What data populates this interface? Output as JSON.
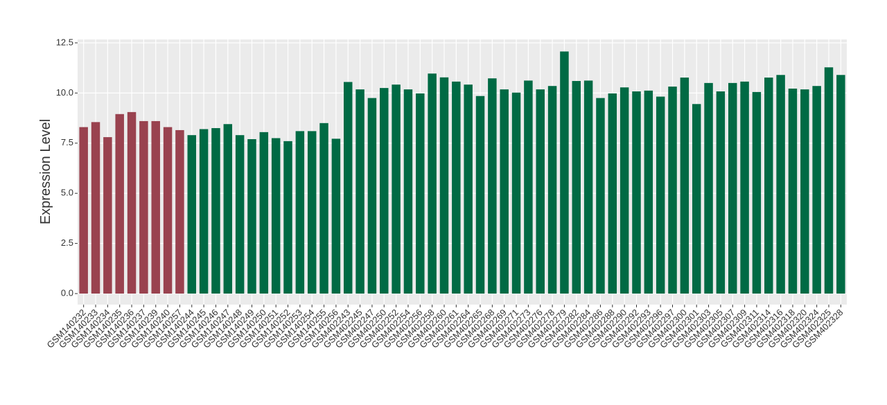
{
  "chart_data": {
    "type": "bar",
    "y_label": "Expression Level",
    "categories": [
      "GSM140232",
      "GSM140233",
      "GSM140234",
      "GSM140235",
      "GSM140236",
      "GSM140237",
      "GSM140239",
      "GSM140240",
      "GSM140257",
      "GSM140244",
      "GSM140245",
      "GSM140246",
      "GSM140247",
      "GSM140248",
      "GSM140249",
      "GSM140250",
      "GSM140251",
      "GSM140252",
      "GSM140253",
      "GSM140254",
      "GSM140255",
      "GSM140256",
      "GSM402243",
      "GSM402245",
      "GSM402247",
      "GSM402250",
      "GSM402252",
      "GSM402254",
      "GSM402256",
      "GSM402258",
      "GSM402260",
      "GSM402261",
      "GSM402264",
      "GSM402265",
      "GSM402268",
      "GSM402269",
      "GSM402271",
      "GSM402273",
      "GSM402276",
      "GSM402278",
      "GSM402279",
      "GSM402282",
      "GSM402284",
      "GSM402286",
      "GSM402288",
      "GSM402290",
      "GSM402292",
      "GSM402293",
      "GSM402296",
      "GSM402297",
      "GSM402300",
      "GSM402301",
      "GSM402303",
      "GSM402305",
      "GSM402307",
      "GSM402309",
      "GSM402311",
      "GSM402314",
      "GSM402316",
      "GSM402318",
      "GSM402320",
      "GSM402324",
      "GSM402325",
      "GSM402328"
    ],
    "values": [
      8.3,
      8.55,
      7.8,
      8.95,
      9.05,
      8.6,
      8.6,
      8.3,
      8.15,
      7.9,
      8.2,
      8.25,
      8.45,
      7.9,
      7.7,
      8.05,
      7.75,
      7.6,
      8.1,
      8.1,
      8.5,
      7.72,
      10.55,
      10.18,
      9.75,
      10.25,
      10.42,
      10.18,
      9.98,
      10.97,
      10.78,
      10.57,
      10.42,
      9.85,
      10.73,
      10.18,
      10.02,
      10.62,
      10.18,
      10.35,
      12.07,
      10.6,
      10.62,
      9.75,
      9.98,
      10.28,
      10.08,
      10.12,
      9.82,
      10.32,
      10.77,
      9.45,
      10.5,
      10.08,
      10.5,
      10.57,
      10.05,
      10.77,
      10.9,
      10.22,
      10.18,
      10.35,
      11.28,
      10.9
    ],
    "colors": [
      "#99424f",
      "#99424f",
      "#99424f",
      "#99424f",
      "#99424f",
      "#99424f",
      "#99424f",
      "#99424f",
      "#99424f",
      "#006a44",
      "#006a44",
      "#006a44",
      "#006a44",
      "#006a44",
      "#006a44",
      "#006a44",
      "#006a44",
      "#006a44",
      "#006a44",
      "#006a44",
      "#006a44",
      "#006a44",
      "#006a44",
      "#006a44",
      "#006a44",
      "#006a44",
      "#006a44",
      "#006a44",
      "#006a44",
      "#006a44",
      "#006a44",
      "#006a44",
      "#006a44",
      "#006a44",
      "#006a44",
      "#006a44",
      "#006a44",
      "#006a44",
      "#006a44",
      "#006a44",
      "#006a44",
      "#006a44",
      "#006a44",
      "#006a44",
      "#006a44",
      "#006a44",
      "#006a44",
      "#006a44",
      "#006a44",
      "#006a44",
      "#006a44",
      "#006a44",
      "#006a44",
      "#006a44",
      "#006a44",
      "#006a44",
      "#006a44",
      "#006a44",
      "#006a44",
      "#006a44",
      "#006a44",
      "#006a44",
      "#006a44",
      "#006a44"
    ],
    "ylim": [
      -0.55,
      12.67
    ],
    "yticks": [
      {
        "value": 0,
        "label": "0.0"
      },
      {
        "value": 2.5,
        "label": "2.5"
      },
      {
        "value": 5,
        "label": "5.0"
      },
      {
        "value": 7.5,
        "label": "7.5"
      },
      {
        "value": 10,
        "label": "10.0"
      },
      {
        "value": 12.5,
        "label": "12.5"
      }
    ],
    "grid": true
  }
}
